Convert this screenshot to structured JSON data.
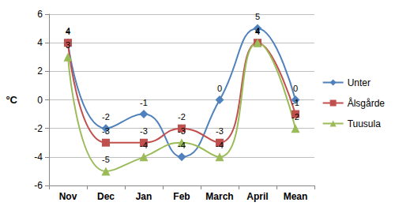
{
  "chart_data": {
    "type": "line",
    "y_label": "°C",
    "categories": [
      "Nov",
      "Dec",
      "Jan",
      "Feb",
      "March",
      "April",
      "Mean"
    ],
    "series": [
      {
        "name": "Unter",
        "color": "#4f81bd",
        "marker": "diamond",
        "values": [
          4,
          -2,
          -1,
          -4,
          0,
          5,
          0
        ]
      },
      {
        "name": "Ålsgårde",
        "color": "#c0504d",
        "marker": "square",
        "values": [
          4,
          -3,
          -3,
          -2,
          -3,
          4,
          -1
        ]
      },
      {
        "name": "Tuusula",
        "color": "#9bbb59",
        "marker": "triangle",
        "values": [
          3,
          -5,
          -4,
          -3,
          -4,
          4,
          -2
        ]
      }
    ],
    "ylim": [
      -6,
      6
    ],
    "yticks": [
      -6,
      -4,
      -2,
      0,
      2,
      4,
      6
    ],
    "grid": true,
    "legend": "right",
    "data_labels": true,
    "line_style": "solid"
  }
}
